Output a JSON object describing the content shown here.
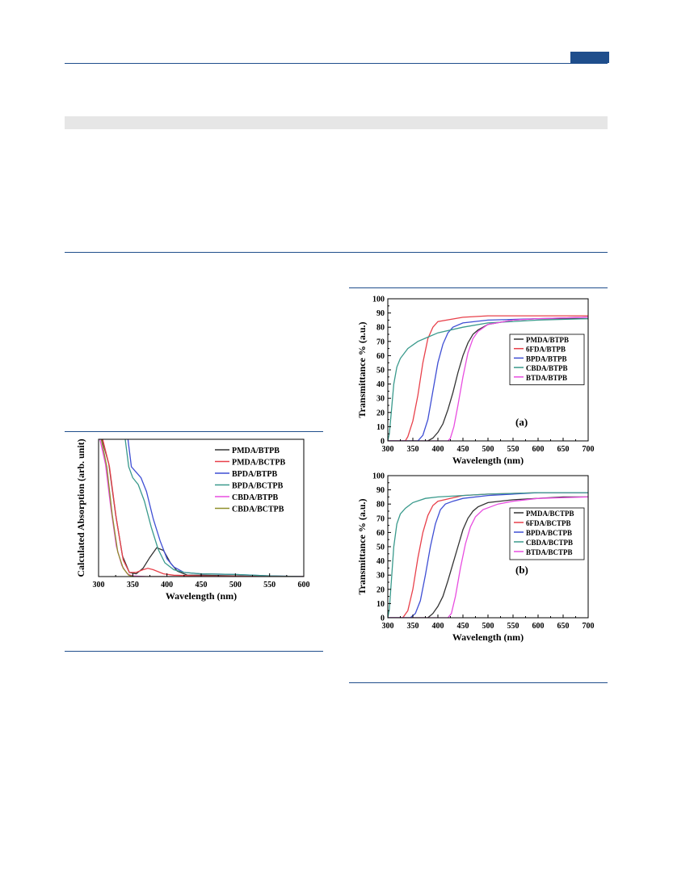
{
  "colors": {
    "header_rule": "#1f4e8c",
    "header_tab": "#1f4e8c",
    "gray_bar": "#e6e6e6"
  },
  "chart_data": [
    {
      "type": "line",
      "xlabel": "Wavelength (nm)",
      "ylabel": "Calculated Absorption (arb. unit)",
      "xlim": [
        300,
        600
      ],
      "ylim": [
        0,
        100
      ],
      "xticks": [
        300,
        350,
        400,
        450,
        500,
        550,
        600
      ],
      "yticks_shown": false,
      "legend_position": "top-right",
      "series": [
        {
          "name": "PMDA/BTPB",
          "color": "#333333",
          "points": [
            [
              305,
              100
            ],
            [
              315,
              82
            ],
            [
              325,
              45
            ],
            [
              335,
              15
            ],
            [
              345,
              3
            ],
            [
              355,
              2
            ],
            [
              365,
              6
            ],
            [
              375,
              14
            ],
            [
              385,
              21
            ],
            [
              395,
              19
            ],
            [
              405,
              10
            ],
            [
              415,
              4
            ],
            [
              430,
              1
            ],
            [
              450,
              1
            ],
            [
              500,
              0.5
            ],
            [
              550,
              0
            ],
            [
              600,
              0
            ]
          ]
        },
        {
          "name": "PMDA/BCTPB",
          "color": "#e8404a",
          "points": [
            [
              306,
              100
            ],
            [
              316,
              80
            ],
            [
              326,
              42
            ],
            [
              336,
              12
            ],
            [
              345,
              3
            ],
            [
              355,
              3
            ],
            [
              365,
              5
            ],
            [
              372,
              6
            ],
            [
              380,
              5
            ],
            [
              395,
              2
            ],
            [
              410,
              1
            ],
            [
              450,
              0.5
            ],
            [
              500,
              0.3
            ],
            [
              550,
              0
            ],
            [
              600,
              0
            ]
          ]
        },
        {
          "name": "BPDA/BTPB",
          "color": "#3f4fd4",
          "points": [
            [
              343,
              100
            ],
            [
              348,
              80
            ],
            [
              355,
              76
            ],
            [
              362,
              72
            ],
            [
              370,
              62
            ],
            [
              380,
              42
            ],
            [
              390,
              26
            ],
            [
              400,
              13
            ],
            [
              410,
              7
            ],
            [
              425,
              3
            ],
            [
              450,
              2
            ],
            [
              500,
              1.5
            ],
            [
              550,
              0.5
            ],
            [
              600,
              0
            ]
          ]
        },
        {
          "name": "BPDA/BCTPB",
          "color": "#3a9a8c",
          "points": [
            [
              339,
              100
            ],
            [
              344,
              80
            ],
            [
              350,
              72
            ],
            [
              358,
              67
            ],
            [
              367,
              55
            ],
            [
              377,
              36
            ],
            [
              387,
              20
            ],
            [
              397,
              10
            ],
            [
              410,
              5
            ],
            [
              425,
              3
            ],
            [
              450,
              2
            ],
            [
              500,
              1.5
            ],
            [
              550,
              0.5
            ],
            [
              600,
              0
            ]
          ]
        },
        {
          "name": "CBDA/BTPB",
          "color": "#e84de0",
          "points": [
            [
              302,
              100
            ],
            [
              310,
              82
            ],
            [
              318,
              50
            ],
            [
              326,
              22
            ],
            [
              334,
              8
            ],
            [
              342,
              2
            ],
            [
              350,
              0.5
            ],
            [
              370,
              0
            ],
            [
              600,
              0
            ]
          ]
        },
        {
          "name": "CBDA/BCTPB",
          "color": "#8f8f2a",
          "points": [
            [
              304,
              100
            ],
            [
              312,
              80
            ],
            [
              320,
              45
            ],
            [
              328,
              18
            ],
            [
              336,
              6
            ],
            [
              344,
              1
            ],
            [
              352,
              0
            ],
            [
              600,
              0
            ]
          ]
        }
      ]
    },
    {
      "type": "line",
      "panel_label": "(a)",
      "xlabel": "Wavelength (nm)",
      "ylabel": "Transmittance % (a.u.)",
      "xlim": [
        300,
        700
      ],
      "ylim": [
        0,
        100
      ],
      "xticks": [
        300,
        350,
        400,
        450,
        500,
        550,
        600,
        650,
        700
      ],
      "yticks": [
        0,
        10,
        20,
        30,
        40,
        50,
        60,
        70,
        80,
        90,
        100
      ],
      "legend_position": "right",
      "series": [
        {
          "name": "PMDA/BTPB",
          "color": "#333333",
          "points": [
            [
              300,
              0
            ],
            [
              380,
              0
            ],
            [
              390,
              2
            ],
            [
              400,
              6
            ],
            [
              410,
              12
            ],
            [
              420,
              22
            ],
            [
              430,
              34
            ],
            [
              440,
              48
            ],
            [
              450,
              60
            ],
            [
              460,
              69
            ],
            [
              470,
              75
            ],
            [
              480,
              78
            ],
            [
              500,
              82
            ],
            [
              550,
              85
            ],
            [
              600,
              86
            ],
            [
              650,
              86
            ],
            [
              700,
              86
            ]
          ]
        },
        {
          "name": "6FDA/BTPB",
          "color": "#e8404a",
          "points": [
            [
              300,
              0
            ],
            [
              335,
              0
            ],
            [
              340,
              3
            ],
            [
              350,
              14
            ],
            [
              360,
              32
            ],
            [
              370,
              55
            ],
            [
              380,
              72
            ],
            [
              390,
              80
            ],
            [
              400,
              84
            ],
            [
              450,
              87
            ],
            [
              500,
              88
            ],
            [
              600,
              88
            ],
            [
              700,
              88
            ]
          ]
        },
        {
          "name": "BPDA/BTPB",
          "color": "#3f4fd4",
          "points": [
            [
              300,
              0
            ],
            [
              360,
              0
            ],
            [
              370,
              4
            ],
            [
              380,
              15
            ],
            [
              390,
              35
            ],
            [
              400,
              55
            ],
            [
              410,
              68
            ],
            [
              420,
              76
            ],
            [
              430,
              80
            ],
            [
              450,
              83
            ],
            [
              500,
              85
            ],
            [
              600,
              86
            ],
            [
              700,
              87
            ]
          ]
        },
        {
          "name": "CBDA/BTPB",
          "color": "#3a9a8c",
          "points": [
            [
              300,
              0
            ],
            [
              303,
              5
            ],
            [
              307,
              20
            ],
            [
              312,
              40
            ],
            [
              318,
              52
            ],
            [
              325,
              58
            ],
            [
              340,
              65
            ],
            [
              360,
              70
            ],
            [
              380,
              73
            ],
            [
              400,
              76
            ],
            [
              450,
              80
            ],
            [
              500,
              83
            ],
            [
              600,
              85
            ],
            [
              700,
              86
            ]
          ]
        },
        {
          "name": "BTDA/BTPB",
          "color": "#e84de0",
          "points": [
            [
              300,
              0
            ],
            [
              420,
              0
            ],
            [
              425,
              2
            ],
            [
              432,
              10
            ],
            [
              440,
              25
            ],
            [
              450,
              45
            ],
            [
              460,
              62
            ],
            [
              470,
              72
            ],
            [
              480,
              77
            ],
            [
              500,
              82
            ],
            [
              550,
              85
            ],
            [
              600,
              86
            ],
            [
              700,
              87
            ]
          ]
        }
      ]
    },
    {
      "type": "line",
      "panel_label": "(b)",
      "xlabel": "Wavelength (nm)",
      "ylabel": "Transmittance % (a.u.)",
      "xlim": [
        300,
        700
      ],
      "ylim": [
        0,
        100
      ],
      "xticks": [
        300,
        350,
        400,
        450,
        500,
        550,
        600,
        650,
        700
      ],
      "yticks": [
        0,
        10,
        20,
        30,
        40,
        50,
        60,
        70,
        80,
        90,
        100
      ],
      "legend_position": "right",
      "series": [
        {
          "name": "PMDA/BCTPB",
          "color": "#333333",
          "points": [
            [
              300,
              0
            ],
            [
              380,
              0
            ],
            [
              390,
              3
            ],
            [
              400,
              8
            ],
            [
              410,
              15
            ],
            [
              420,
              26
            ],
            [
              430,
              38
            ],
            [
              440,
              50
            ],
            [
              450,
              62
            ],
            [
              460,
              70
            ],
            [
              470,
              75
            ],
            [
              480,
              78
            ],
            [
              500,
              81
            ],
            [
              550,
              83
            ],
            [
              600,
              84
            ],
            [
              650,
              85
            ],
            [
              700,
              85
            ]
          ]
        },
        {
          "name": "6FDA/BCTPB",
          "color": "#e8404a",
          "points": [
            [
              300,
              0
            ],
            [
              330,
              0
            ],
            [
              340,
              5
            ],
            [
              350,
              20
            ],
            [
              360,
              42
            ],
            [
              370,
              60
            ],
            [
              380,
              72
            ],
            [
              390,
              79
            ],
            [
              400,
              82
            ],
            [
              450,
              86
            ],
            [
              500,
              87
            ],
            [
              600,
              88
            ],
            [
              700,
              88
            ]
          ]
        },
        {
          "name": "BPDA/BCTPB",
          "color": "#3f4fd4",
          "points": [
            [
              300,
              0
            ],
            [
              345,
              0
            ],
            [
              355,
              3
            ],
            [
              365,
              12
            ],
            [
              375,
              30
            ],
            [
              385,
              50
            ],
            [
              395,
              66
            ],
            [
              405,
              76
            ],
            [
              415,
              80
            ],
            [
              430,
              82
            ],
            [
              450,
              84
            ],
            [
              500,
              86
            ],
            [
              600,
              88
            ],
            [
              700,
              88
            ]
          ]
        },
        {
          "name": "CBDA/BCTPB",
          "color": "#3a9a8c",
          "points": [
            [
              300,
              0
            ],
            [
              303,
              6
            ],
            [
              307,
              25
            ],
            [
              312,
              50
            ],
            [
              318,
              66
            ],
            [
              325,
              73
            ],
            [
              335,
              77
            ],
            [
              350,
              81
            ],
            [
              375,
              84
            ],
            [
              400,
              85
            ],
            [
              450,
              86
            ],
            [
              500,
              87
            ],
            [
              600,
              88
            ],
            [
              700,
              88
            ]
          ]
        },
        {
          "name": "BTDA/BCTPB",
          "color": "#e84de0",
          "points": [
            [
              300,
              0
            ],
            [
              420,
              0
            ],
            [
              427,
              3
            ],
            [
              435,
              15
            ],
            [
              445,
              35
            ],
            [
              455,
              52
            ],
            [
              465,
              64
            ],
            [
              475,
              71
            ],
            [
              490,
              76
            ],
            [
              520,
              80
            ],
            [
              550,
              82
            ],
            [
              600,
              84
            ],
            [
              700,
              85
            ]
          ]
        }
      ]
    }
  ]
}
